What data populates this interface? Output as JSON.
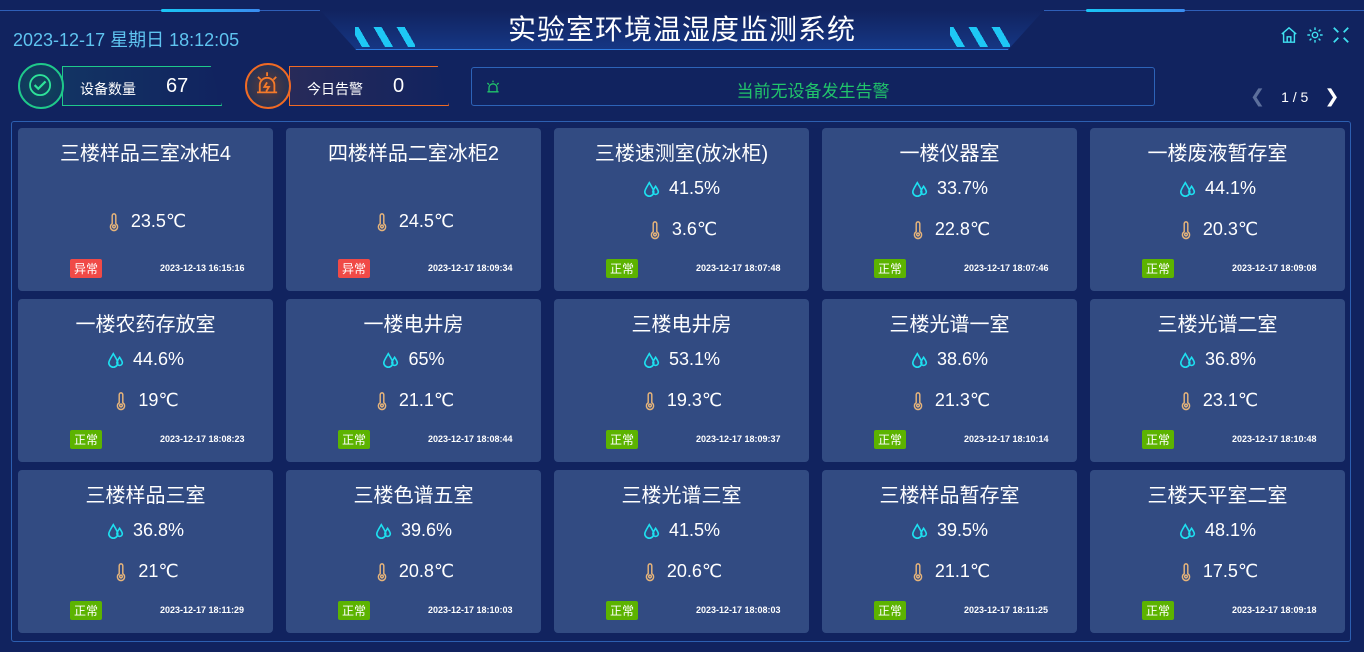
{
  "header": {
    "title": "实验室环境温湿度监测系统",
    "datetime": "2023-12-17 星期日 18:12:05"
  },
  "colors": {
    "normal": "#5cb300",
    "abnormal": "#f04a47",
    "humidity": "#1ee0f0",
    "temperature": "#e6b47a",
    "alarm_text": "#21c46b"
  },
  "stats": {
    "devices": {
      "label": "设备数量",
      "value": "67"
    },
    "alarms": {
      "label": "今日告警",
      "value": "0"
    }
  },
  "alarm_bar": {
    "text": "当前无设备发生告警"
  },
  "pager": {
    "text": "1 / 5"
  },
  "cards": [
    {
      "name": "三楼样品三室冰柜4",
      "humidity": null,
      "temperature": "23.5℃",
      "status": "异常",
      "time": "2023-12-13 16:15:16"
    },
    {
      "name": "四楼样品二室冰柜2",
      "humidity": null,
      "temperature": "24.5℃",
      "status": "异常",
      "time": "2023-12-17 18:09:34"
    },
    {
      "name": "三楼速测室(放冰柜)",
      "humidity": "41.5%",
      "temperature": "3.6℃",
      "status": "正常",
      "time": "2023-12-17 18:07:48"
    },
    {
      "name": "一楼仪器室",
      "humidity": "33.7%",
      "temperature": "22.8℃",
      "status": "正常",
      "time": "2023-12-17 18:07:46"
    },
    {
      "name": "一楼废液暂存室",
      "humidity": "44.1%",
      "temperature": "20.3℃",
      "status": "正常",
      "time": "2023-12-17 18:09:08"
    },
    {
      "name": "一楼农药存放室",
      "humidity": "44.6%",
      "temperature": "19℃",
      "status": "正常",
      "time": "2023-12-17 18:08:23"
    },
    {
      "name": "一楼电井房",
      "humidity": "65%",
      "temperature": "21.1℃",
      "status": "正常",
      "time": "2023-12-17 18:08:44"
    },
    {
      "name": "三楼电井房",
      "humidity": "53.1%",
      "temperature": "19.3℃",
      "status": "正常",
      "time": "2023-12-17 18:09:37"
    },
    {
      "name": "三楼光谱一室",
      "humidity": "38.6%",
      "temperature": "21.3℃",
      "status": "正常",
      "time": "2023-12-17 18:10:14"
    },
    {
      "name": "三楼光谱二室",
      "humidity": "36.8%",
      "temperature": "23.1℃",
      "status": "正常",
      "time": "2023-12-17 18:10:48"
    },
    {
      "name": "三楼样品三室",
      "humidity": "36.8%",
      "temperature": "21℃",
      "status": "正常",
      "time": "2023-12-17 18:11:29"
    },
    {
      "name": "三楼色谱五室",
      "humidity": "39.6%",
      "temperature": "20.8℃",
      "status": "正常",
      "time": "2023-12-17 18:10:03"
    },
    {
      "name": "三楼光谱三室",
      "humidity": "41.5%",
      "temperature": "20.6℃",
      "status": "正常",
      "time": "2023-12-17 18:08:03"
    },
    {
      "name": "三楼样品暂存室",
      "humidity": "39.5%",
      "temperature": "21.1℃",
      "status": "正常",
      "time": "2023-12-17 18:11:25"
    },
    {
      "name": "三楼天平室二室",
      "humidity": "48.1%",
      "temperature": "17.5℃",
      "status": "正常",
      "time": "2023-12-17 18:09:18"
    }
  ]
}
